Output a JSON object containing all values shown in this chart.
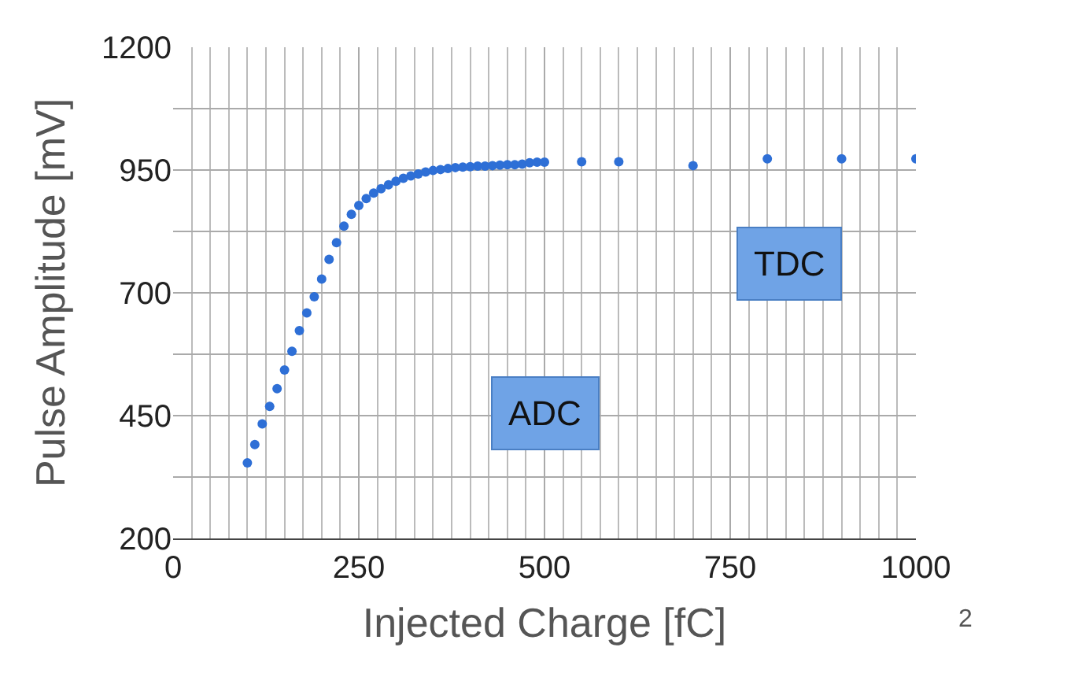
{
  "chart_data": {
    "type": "scatter",
    "xlabel": "Injected Charge [fC]",
    "ylabel": "Pulse Amplitude [mV]",
    "x": [
      100,
      110,
      120,
      130,
      140,
      150,
      160,
      170,
      180,
      190,
      200,
      210,
      220,
      230,
      240,
      250,
      260,
      270,
      280,
      290,
      300,
      310,
      320,
      330,
      340,
      350,
      360,
      370,
      380,
      390,
      400,
      410,
      420,
      430,
      440,
      450,
      460,
      470,
      480,
      490,
      500,
      550,
      600,
      700,
      800,
      900,
      1000
    ],
    "series": [
      {
        "color": "#2e6fd6",
        "values": [
          354,
          391,
          433,
          469,
          505,
          543,
          581,
          623,
          659,
          692,
          728,
          768,
          802,
          836,
          860,
          878,
          892,
          903,
          912,
          920,
          927,
          933,
          938,
          942,
          946,
          949,
          951,
          953,
          955,
          956,
          957,
          958,
          958,
          959,
          960,
          961,
          961,
          962,
          965,
          966,
          966,
          967,
          967,
          959,
          973,
          973,
          973
        ]
      }
    ],
    "xlim": [
      0,
      1000
    ],
    "xticks": [
      0,
      250,
      500,
      750,
      1000
    ],
    "ylim": [
      200,
      1200
    ],
    "yticks": [
      200,
      450,
      700,
      950,
      1200
    ],
    "grid": true,
    "marker": "circle",
    "annotations": [
      "ADC",
      "TDC",
      "2"
    ]
  }
}
